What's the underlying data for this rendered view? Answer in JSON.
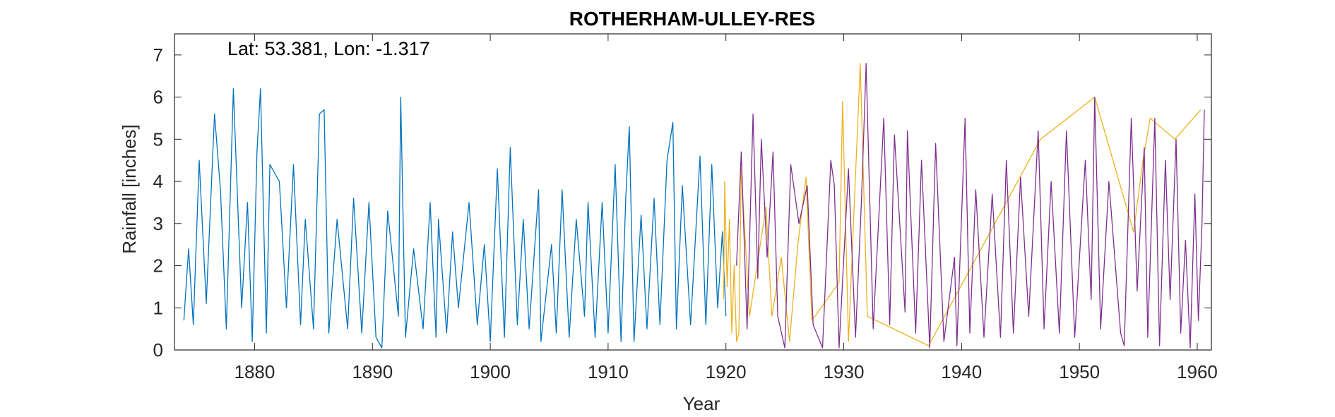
{
  "chart_data": {
    "type": "line",
    "title": "ROTHERHAM-ULLEY-RES",
    "annotation": "Lat: 53.381, Lon: -1.317",
    "xlabel": "Year",
    "ylabel": "Rainfall [inches]",
    "xlim": [
      1873.2,
      1961.2
    ],
    "ylim": [
      0,
      7.5
    ],
    "xticks": [
      1880,
      1890,
      1900,
      1910,
      1920,
      1930,
      1940,
      1950,
      1960
    ],
    "yticks": [
      0,
      1,
      2,
      3,
      4,
      5,
      6,
      7
    ],
    "grid": false,
    "box": true,
    "series": [
      {
        "color": "#0072BD",
        "start_year": 1874,
        "end_year": 1920,
        "notable_points": [
          [
            1874.0,
            0.7
          ],
          [
            1874.4,
            2.4
          ],
          [
            1874.8,
            0.6
          ],
          [
            1875.3,
            4.5
          ],
          [
            1875.9,
            1.1
          ],
          [
            1876.6,
            5.6
          ],
          [
            1877.1,
            3.8
          ],
          [
            1877.6,
            0.5
          ],
          [
            1878.2,
            6.2
          ],
          [
            1878.9,
            1.0
          ],
          [
            1879.4,
            3.5
          ],
          [
            1879.8,
            0.2
          ],
          [
            1880.2,
            4.7
          ],
          [
            1880.5,
            6.2
          ],
          [
            1881.0,
            0.4
          ],
          [
            1881.3,
            4.4
          ],
          [
            1882.1,
            4.0
          ],
          [
            1882.7,
            1.0
          ],
          [
            1883.3,
            4.4
          ],
          [
            1883.9,
            0.6
          ],
          [
            1884.3,
            3.1
          ],
          [
            1885.0,
            0.5
          ],
          [
            1885.5,
            5.6
          ],
          [
            1885.9,
            5.7
          ],
          [
            1886.3,
            0.4
          ],
          [
            1887.0,
            3.1
          ],
          [
            1887.9,
            0.5
          ],
          [
            1888.4,
            3.6
          ],
          [
            1889.1,
            0.4
          ],
          [
            1889.7,
            3.5
          ],
          [
            1890.3,
            0.3
          ],
          [
            1890.8,
            0.05
          ],
          [
            1891.3,
            3.3
          ],
          [
            1892.2,
            0.8
          ],
          [
            1892.4,
            6.0
          ],
          [
            1892.8,
            0.3
          ],
          [
            1893.5,
            2.4
          ],
          [
            1894.3,
            0.5
          ],
          [
            1894.9,
            3.5
          ],
          [
            1895.4,
            0.3
          ],
          [
            1895.6,
            3.1
          ],
          [
            1896.3,
            0.4
          ],
          [
            1896.8,
            2.8
          ],
          [
            1897.3,
            1.0
          ],
          [
            1898.2,
            3.5
          ],
          [
            1898.9,
            0.6
          ],
          [
            1899.5,
            2.5
          ],
          [
            1900.0,
            0.2
          ],
          [
            1900.6,
            4.3
          ],
          [
            1901.2,
            0.3
          ],
          [
            1901.7,
            4.8
          ],
          [
            1902.3,
            0.6
          ],
          [
            1902.8,
            3.1
          ],
          [
            1903.3,
            0.5
          ],
          [
            1904.1,
            3.8
          ],
          [
            1904.3,
            0.2
          ],
          [
            1905.2,
            2.5
          ],
          [
            1905.6,
            0.4
          ],
          [
            1906.1,
            3.8
          ],
          [
            1906.7,
            0.3
          ],
          [
            1907.3,
            3.1
          ],
          [
            1908.0,
            0.8
          ],
          [
            1908.3,
            3.5
          ],
          [
            1908.9,
            0.3
          ],
          [
            1909.5,
            3.5
          ],
          [
            1910.0,
            0.4
          ],
          [
            1910.6,
            4.4
          ],
          [
            1911.1,
            0.2
          ],
          [
            1911.5,
            3.6
          ],
          [
            1911.8,
            5.3
          ],
          [
            1912.2,
            0.2
          ],
          [
            1912.8,
            3.2
          ],
          [
            1913.3,
            0.5
          ],
          [
            1913.9,
            3.6
          ],
          [
            1914.4,
            0.6
          ],
          [
            1915.0,
            4.5
          ],
          [
            1915.5,
            5.4
          ],
          [
            1915.8,
            0.5
          ],
          [
            1916.3,
            3.9
          ],
          [
            1917.0,
            0.6
          ],
          [
            1917.8,
            4.6
          ],
          [
            1918.3,
            0.6
          ],
          [
            1918.8,
            4.4
          ],
          [
            1919.3,
            1.0
          ],
          [
            1919.7,
            2.8
          ],
          [
            1920.0,
            0.8
          ]
        ]
      },
      {
        "color": "#EDB120",
        "start_year": 1919.8,
        "end_year": 1960.5,
        "notable_points": [
          [
            1919.8,
            1.2
          ],
          [
            1919.9,
            4.0
          ],
          [
            1920.1,
            1.5
          ],
          [
            1920.3,
            3.1
          ],
          [
            1920.5,
            0.4
          ],
          [
            1920.7,
            2.0
          ],
          [
            1920.9,
            0.2
          ],
          [
            1921.1,
            0.4
          ],
          [
            1921.3,
            4.3
          ],
          [
            1922.0,
            0.8
          ],
          [
            1923.4,
            3.4
          ],
          [
            1923.9,
            0.8
          ],
          [
            1924.7,
            2.2
          ],
          [
            1925.4,
            0.2
          ],
          [
            1926.1,
            2.5
          ],
          [
            1926.8,
            4.1
          ],
          [
            1927.3,
            0.7
          ],
          [
            1929.6,
            1.6
          ],
          [
            1929.9,
            5.9
          ],
          [
            1930.4,
            0.2
          ],
          [
            1931.4,
            6.8
          ],
          [
            1932.0,
            0.8
          ],
          [
            1937.2,
            0.1
          ],
          [
            1946.7,
            5.0
          ],
          [
            1951.3,
            6.0
          ],
          [
            1954.6,
            2.8
          ],
          [
            1955.4,
            4.5
          ],
          [
            1956.0,
            5.5
          ],
          [
            1958.1,
            5.0
          ],
          [
            1960.3,
            5.7
          ]
        ]
      },
      {
        "color": "#7E2F8E",
        "start_year": 1920.9,
        "end_year": 1960.6,
        "notable_points": [
          [
            1920.9,
            2.0
          ],
          [
            1921.3,
            4.7
          ],
          [
            1921.8,
            0.5
          ],
          [
            1922.3,
            5.6
          ],
          [
            1922.7,
            1.7
          ],
          [
            1923.0,
            5.0
          ],
          [
            1923.5,
            2.2
          ],
          [
            1924.0,
            4.7
          ],
          [
            1924.4,
            0.8
          ],
          [
            1925.0,
            0.05
          ],
          [
            1925.5,
            4.4
          ],
          [
            1926.2,
            3.0
          ],
          [
            1926.9,
            3.9
          ],
          [
            1927.4,
            0.6
          ],
          [
            1928.2,
            0.05
          ],
          [
            1928.9,
            4.5
          ],
          [
            1929.2,
            3.9
          ],
          [
            1929.6,
            0.05
          ],
          [
            1930.4,
            4.3
          ],
          [
            1931.0,
            0.3
          ],
          [
            1931.5,
            3.5
          ],
          [
            1931.9,
            6.8
          ],
          [
            1932.5,
            0.5
          ],
          [
            1933.4,
            5.5
          ],
          [
            1933.9,
            0.6
          ],
          [
            1934.3,
            5.1
          ],
          [
            1935.2,
            0.9
          ],
          [
            1935.4,
            5.2
          ],
          [
            1936.1,
            0.4
          ],
          [
            1936.6,
            4.5
          ],
          [
            1937.3,
            0.05
          ],
          [
            1937.8,
            4.9
          ],
          [
            1938.5,
            0.2
          ],
          [
            1939.4,
            2.2
          ],
          [
            1939.6,
            0.1
          ],
          [
            1940.3,
            5.5
          ],
          [
            1940.7,
            0.4
          ],
          [
            1941.2,
            3.8
          ],
          [
            1941.9,
            0.3
          ],
          [
            1942.6,
            3.7
          ],
          [
            1943.3,
            0.3
          ],
          [
            1943.8,
            4.5
          ],
          [
            1944.4,
            0.4
          ],
          [
            1945.0,
            4.1
          ],
          [
            1945.7,
            0.8
          ],
          [
            1946.5,
            5.2
          ],
          [
            1947.0,
            0.5
          ],
          [
            1947.6,
            4.0
          ],
          [
            1948.3,
            0.4
          ],
          [
            1948.9,
            5.2
          ],
          [
            1949.6,
            0.3
          ],
          [
            1950.5,
            4.5
          ],
          [
            1951.0,
            1.2
          ],
          [
            1951.3,
            6.0
          ],
          [
            1951.8,
            0.5
          ],
          [
            1952.5,
            4.0
          ],
          [
            1953.5,
            0.4
          ],
          [
            1953.8,
            0.1
          ],
          [
            1954.4,
            5.5
          ],
          [
            1954.9,
            1.4
          ],
          [
            1955.5,
            4.8
          ],
          [
            1955.8,
            0.3
          ],
          [
            1956.4,
            5.5
          ],
          [
            1956.8,
            0.1
          ],
          [
            1957.3,
            4.5
          ],
          [
            1957.7,
            1.2
          ],
          [
            1958.2,
            5.0
          ],
          [
            1958.6,
            0.4
          ],
          [
            1959.0,
            2.6
          ],
          [
            1959.4,
            0.05
          ],
          [
            1959.8,
            3.7
          ],
          [
            1960.1,
            0.7
          ],
          [
            1960.4,
            3.0
          ],
          [
            1960.6,
            5.7
          ]
        ]
      }
    ]
  }
}
